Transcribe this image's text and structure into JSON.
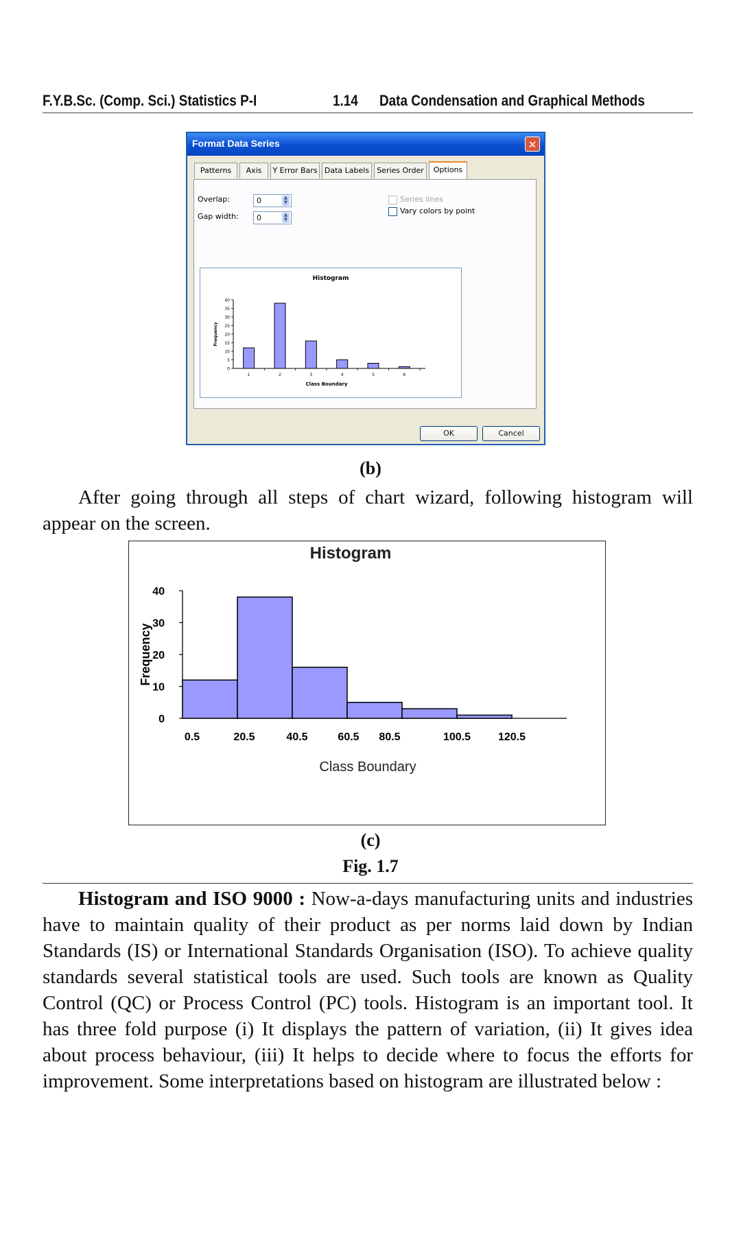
{
  "header": {
    "left": "F.Y.B.Sc. (Comp. Sci.) Statistics P-I",
    "page": "1.14",
    "right": "Data Condensation and Graphical Methods"
  },
  "dialog": {
    "title": "Format Data Series",
    "close_icon": "close-icon",
    "tabs": [
      "Patterns",
      "Axis",
      "Y Error Bars",
      "Data Labels",
      "Series Order",
      "Options"
    ],
    "active_tab": "Options",
    "overlap_label": "Overlap:",
    "overlap_value": "0",
    "gap_label": "Gap width:",
    "gap_value": "0",
    "series_lines_label": "Series lines",
    "vary_colors_label": "Vary colors by point",
    "ok_label": "OK",
    "cancel_label": "Cancel"
  },
  "caption_b": "(b)",
  "intro_text": "After going through all steps of chart wizard, following histogram will appear on the screen.",
  "caption_c": "(c)",
  "fig_caption": "Fig. 1.7",
  "body": {
    "bold_lead": "Histogram and ISO 9000 :",
    "text": " Now-a-days manufacturing units and industries have to maintain quality of their product as per norms laid down by Indian Standards (IS) or International Standards Organisation (ISO). To achieve quality standards several statistical tools are used. Such tools are known as Quality Control (QC) or Process Control (PC) tools. Histogram is an important tool. It has three fold purpose (i) It displays the pattern of variation, (ii) It gives idea about process behaviour, (iii) It helps to decide where to focus the efforts for improvement. Some interpretations based on histogram are illustrated below :"
  },
  "colors": {
    "bar_fill": "#9999ff",
    "bar_stroke": "#000000",
    "title_bar": "#0a4fd1"
  },
  "chart_data": [
    {
      "type": "bar",
      "title": "Histogram",
      "xlabel": "Class Boundary",
      "ylabel": "Frequency",
      "categories": [
        "1",
        "2",
        "3",
        "4",
        "5",
        "6"
      ],
      "values": [
        12,
        38,
        16,
        5,
        3,
        1
      ],
      "yticks": [
        "0",
        "5",
        "10",
        "15",
        "20",
        "25",
        "30",
        "35",
        "40"
      ],
      "ylim": [
        0,
        40
      ],
      "grid": false
    },
    {
      "type": "bar",
      "title": "Histogram",
      "xlabel": "Class Boundary",
      "ylabel": "Frequency",
      "x_ticks": [
        "0.5",
        "20.5",
        "40.5",
        "60.5",
        "80.5",
        "100.5",
        "120.5"
      ],
      "values": [
        12,
        38,
        16,
        5,
        3,
        1
      ],
      "yticks": [
        "0",
        "10",
        "20",
        "30",
        "40"
      ],
      "ylim": [
        0,
        40
      ],
      "grid": false
    }
  ]
}
